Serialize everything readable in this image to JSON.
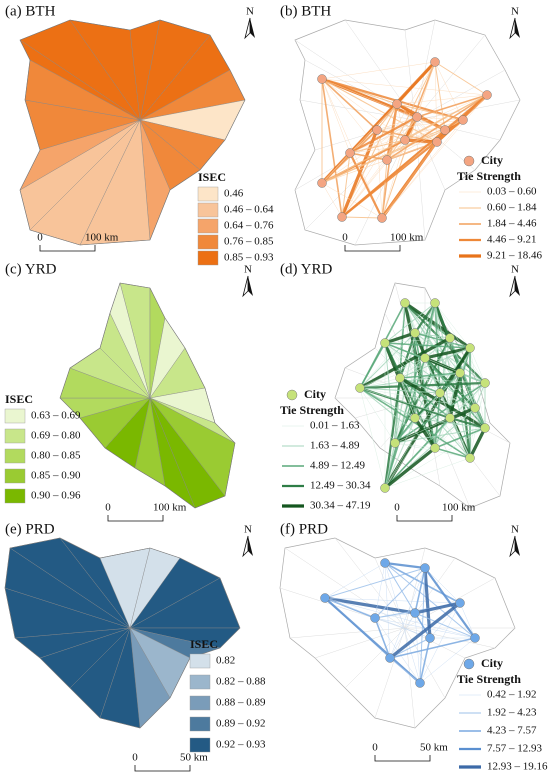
{
  "panels": [
    {
      "kind": "choropleth",
      "label": "(a) BTH",
      "north": "N",
      "scale": {
        "start": "0",
        "end": "100 km"
      },
      "legend": {
        "title": "ISEC",
        "items": [
          "0.46",
          "0.46 – 0.64",
          "0.64 – 0.76",
          "0.76 – 0.85",
          "0.85 – 0.93"
        ],
        "colors": [
          "#fde5c8",
          "#f8c49a",
          "#f5a46a",
          "#f0883a",
          "#ec7014"
        ]
      }
    },
    {
      "kind": "network",
      "label": "(b) BTH",
      "north": "N",
      "scale": {
        "start": "0",
        "end": "100 km"
      },
      "legend": {
        "node": "City",
        "node_color": "#f4a582",
        "title": "Tie Strength",
        "items": [
          "0.03 – 0.60",
          "0.60 – 1.84",
          "1.84 – 4.46",
          "4.46 – 9.21",
          "9.21 – 18.46"
        ],
        "colors": [
          "#fbd9b8",
          "#f7c08a",
          "#f2a05c",
          "#ee8838",
          "#e8731a"
        ]
      }
    },
    {
      "kind": "choropleth",
      "label": "(c) YRD",
      "north": "N",
      "scale": {
        "start": "0",
        "end": "100 km"
      },
      "legend": {
        "title": "ISEC",
        "items": [
          "0.63 – 0.69",
          "0.69 – 0.80",
          "0.80 – 0.85",
          "0.85 – 0.90",
          "0.90 – 0.96"
        ],
        "colors": [
          "#eaf6d0",
          "#c8e68a",
          "#b2da5e",
          "#9acb32",
          "#7ab800"
        ]
      }
    },
    {
      "kind": "network",
      "label": "(d) YRD",
      "north": "N",
      "scale": {
        "start": "0",
        "end": "100 km"
      },
      "legend": {
        "node": "City",
        "node_color": "#c6e27a",
        "title": "Tie Strength",
        "items": [
          "0.01 – 1.63",
          "1.63 – 4.89",
          "4.89 – 12.49",
          "12.49 – 30.34",
          "30.34 – 47.19"
        ],
        "colors": [
          "#d6ede0",
          "#a6d6bc",
          "#5aa97a",
          "#2e7d46",
          "#14561f"
        ]
      }
    },
    {
      "kind": "choropleth",
      "label": "(e) PRD",
      "north": "N",
      "scale": {
        "start": "0",
        "end": "50 km"
      },
      "legend": {
        "title": "ISEC",
        "items": [
          "0.82",
          "0.82 – 0.88",
          "0.88 – 0.89",
          "0.89 – 0.92",
          "0.92 – 0.93"
        ],
        "colors": [
          "#d3e0ea",
          "#9bb6cc",
          "#7a9cb9",
          "#4d7a9e",
          "#235a84"
        ]
      }
    },
    {
      "kind": "network",
      "label": "(f) PRD",
      "north": "N",
      "scale": {
        "start": "0",
        "end": "50 km"
      },
      "legend": {
        "node": "City",
        "node_color": "#6ea8e8",
        "title": "Tie Strength",
        "items": [
          "0.42 – 1.92",
          "1.92 – 4.23",
          "4.23 – 7.57",
          "7.57 – 12.93",
          "12.93 – 19.16"
        ],
        "colors": [
          "#c6daf2",
          "#9cc0ea",
          "#7aa9e0",
          "#5a8fd0",
          "#3c6aa8"
        ]
      }
    }
  ]
}
